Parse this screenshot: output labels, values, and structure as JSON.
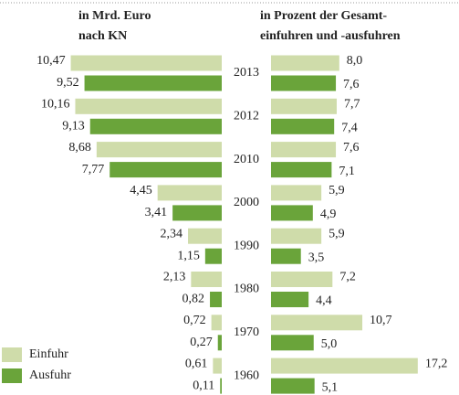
{
  "chart_data": {
    "type": "butterfly",
    "left_title": [
      "in Mrd. Euro",
      "nach KN"
    ],
    "right_title": [
      "in Prozent der Gesamt-",
      "einfuhren und -ausfuhren"
    ],
    "categories": [
      "2013",
      "2012",
      "2010",
      "2000",
      "1990",
      "1980",
      "1970",
      "1960"
    ],
    "series": [
      {
        "name": "Einfuhr",
        "color": "#cfdcaa",
        "values": [
          10.47,
          10.16,
          8.68,
          4.45,
          2.34,
          2.13,
          0.72,
          0.61
        ],
        "value_labels": [
          "10,47",
          "10,16",
          "8,68",
          "4,45",
          "2,34",
          "2,13",
          "0,72",
          "0,61"
        ],
        "share_values": [
          8.0,
          7.7,
          7.6,
          5.9,
          5.9,
          7.2,
          10.7,
          17.2
        ],
        "share_labels": [
          "8,0",
          "7,7",
          "7,6",
          "5,9",
          "5,9",
          "7,2",
          "10,7",
          "17,2"
        ]
      },
      {
        "name": "Ausfuhr",
        "color": "#6aa43a",
        "values": [
          9.52,
          9.13,
          7.77,
          3.41,
          1.15,
          0.82,
          0.27,
          0.11
        ],
        "value_labels": [
          "9,52",
          "9,13",
          "7,77",
          "3,41",
          "1,15",
          "0,82",
          "0,27",
          "0,11"
        ],
        "share_values": [
          7.6,
          7.4,
          7.1,
          4.9,
          3.5,
          4.4,
          5.0,
          5.1
        ],
        "share_labels": [
          "7,6",
          "7,4",
          "7,1",
          "4,9",
          "3,5",
          "4,4",
          "5,0",
          "5,1"
        ]
      }
    ]
  }
}
